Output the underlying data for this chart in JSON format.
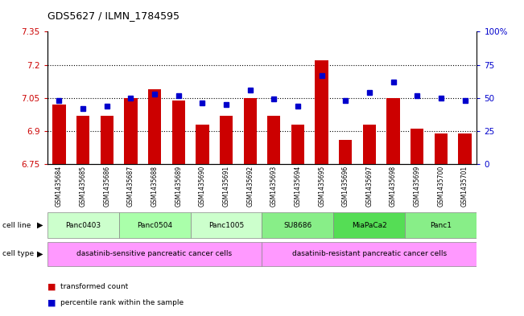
{
  "title": "GDS5627 / ILMN_1784595",
  "samples": [
    "GSM1435684",
    "GSM1435685",
    "GSM1435686",
    "GSM1435687",
    "GSM1435688",
    "GSM1435689",
    "GSM1435690",
    "GSM1435691",
    "GSM1435692",
    "GSM1435693",
    "GSM1435694",
    "GSM1435695",
    "GSM1435696",
    "GSM1435697",
    "GSM1435698",
    "GSM1435699",
    "GSM1435700",
    "GSM1435701"
  ],
  "bar_values": [
    7.02,
    6.97,
    6.97,
    7.05,
    7.09,
    7.04,
    6.93,
    6.97,
    7.05,
    6.97,
    6.93,
    7.22,
    6.86,
    6.93,
    7.05,
    6.91,
    6.89,
    6.89
  ],
  "percentile_values": [
    48,
    42,
    44,
    50,
    53,
    52,
    46,
    45,
    56,
    49,
    44,
    67,
    48,
    54,
    62,
    52,
    50,
    48
  ],
  "ymin": 6.75,
  "ymax": 7.35,
  "yticks": [
    6.75,
    6.9,
    7.05,
    7.2,
    7.35
  ],
  "ytick_labels": [
    "6.75",
    "6.9",
    "7.05",
    "7.2",
    "7.35"
  ],
  "right_yticks": [
    0,
    25,
    50,
    75,
    100
  ],
  "right_ytick_labels": [
    "0",
    "25",
    "50",
    "75",
    "100%"
  ],
  "bar_color": "#cc0000",
  "dot_color": "#0000cc",
  "cell_lines": [
    {
      "label": "Panc0403",
      "start": 0,
      "end": 3,
      "color": "#ccffcc"
    },
    {
      "label": "Panc0504",
      "start": 3,
      "end": 6,
      "color": "#aaffaa"
    },
    {
      "label": "Panc1005",
      "start": 6,
      "end": 9,
      "color": "#ccffcc"
    },
    {
      "label": "SU8686",
      "start": 9,
      "end": 12,
      "color": "#88ee88"
    },
    {
      "label": "MiaPaCa2",
      "start": 12,
      "end": 15,
      "color": "#55dd55"
    },
    {
      "label": "Panc1",
      "start": 15,
      "end": 18,
      "color": "#88ee88"
    }
  ],
  "cell_types": [
    {
      "label": "dasatinib-sensitive pancreatic cancer cells",
      "start": 0,
      "end": 9,
      "color": "#ff99ff"
    },
    {
      "label": "dasatinib-resistant pancreatic cancer cells",
      "start": 9,
      "end": 18,
      "color": "#ff99ff"
    }
  ],
  "legend_items": [
    {
      "color": "#cc0000",
      "label": "transformed count"
    },
    {
      "color": "#0000cc",
      "label": "percentile rank within the sample"
    }
  ]
}
